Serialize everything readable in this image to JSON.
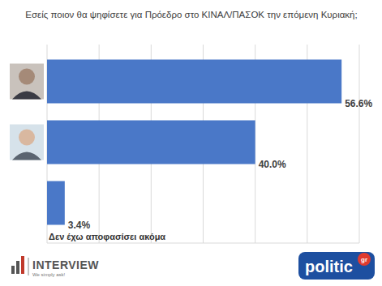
{
  "chart_data": {
    "type": "bar",
    "orientation": "horizontal",
    "title": "Εσείς ποιον θα ψηφίσετε για Πρόεδρο στο ΚΙΝΑΛ/ΠΑΣΟΚ την επόμενη Κυριακή;",
    "categories": [
      null,
      null,
      "Δεν έχω αποφασίσει ακόμα"
    ],
    "values": [
      56.6,
      40.0,
      3.4
    ],
    "value_labels": [
      "56.6%",
      "40.0%",
      "3.4%"
    ],
    "color": "#4a78c8",
    "xlim": [
      0,
      60
    ],
    "xticks": [
      0,
      10,
      20,
      30,
      40,
      50,
      60
    ],
    "grid": true,
    "tick_labels": false,
    "data_labels": true,
    "annotations": [
      "INTERVIEW",
      "We simply ask!",
      "politic",
      "gr"
    ]
  }
}
